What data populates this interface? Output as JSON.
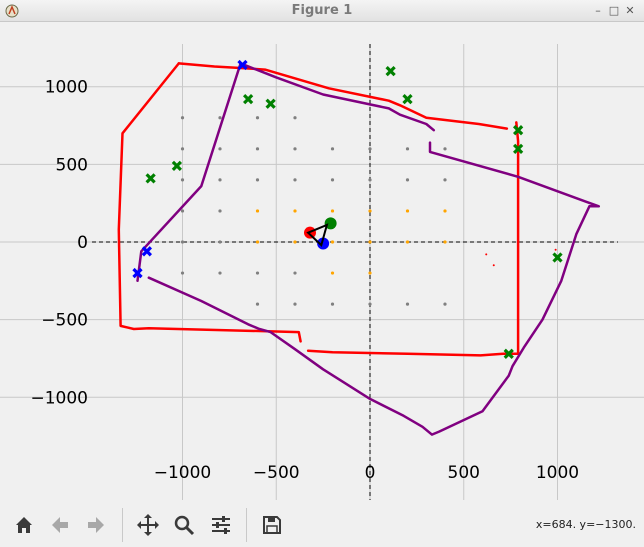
{
  "window": {
    "title": "Figure 1"
  },
  "toolbar": {
    "buttons": [
      "home-icon",
      "back-icon",
      "forward-icon",
      "pan-icon",
      "zoom-icon",
      "subplots-icon",
      "save-icon"
    ],
    "coords": "x=684. y=−1300."
  },
  "chart_data": {
    "type": "scatter",
    "xlim": [
      -1000,
      1000
    ],
    "ylim": [
      -1000,
      1000
    ],
    "xticks": [
      -1000,
      -500,
      0,
      500,
      1000
    ],
    "yticks": [
      -1000,
      -500,
      0,
      500,
      1000
    ],
    "xtick_labels": [
      "−1000",
      "−500",
      "0",
      "500",
      "1000"
    ],
    "ytick_labels": [
      "−1000",
      "−500",
      "0",
      "500",
      "1000"
    ],
    "grid": true,
    "dashed_axes": true,
    "colors": {
      "red": "#ff0000",
      "purple": "#800080",
      "green": "#008000",
      "blue": "#0000ff",
      "orange": "#ffa500",
      "gray": "#808080"
    },
    "red_path": [
      [
        [
          -1020,
          1150
        ],
        [
          -1320,
          700
        ],
        [
          -1340,
          80
        ],
        [
          -1330,
          -540
        ],
        [
          -1260,
          -560
        ],
        [
          -1180,
          -555
        ],
        [
          -380,
          -580
        ],
        [
          -370,
          -640
        ]
      ],
      [
        [
          -1020,
          1150
        ],
        [
          -830,
          1130
        ],
        [
          -680,
          1120
        ],
        [
          -560,
          1110
        ],
        [
          -220,
          990
        ],
        [
          100,
          910
        ],
        [
          160,
          880
        ],
        [
          300,
          800
        ],
        [
          580,
          760
        ],
        [
          730,
          730
        ]
      ],
      [
        [
          -330,
          -700
        ],
        [
          -200,
          -710
        ],
        [
          200,
          -720
        ],
        [
          590,
          -730
        ],
        [
          710,
          -720
        ],
        [
          740,
          -720
        ],
        [
          790,
          -720
        ],
        [
          790,
          -500
        ],
        [
          790,
          650
        ],
        [
          780,
          770
        ]
      ]
    ],
    "purple_path": [
      [
        [
          -1240,
          -250
        ],
        [
          -1220,
          -60
        ],
        [
          -900,
          360
        ],
        [
          -690,
          1150
        ],
        [
          -500,
          1060
        ],
        [
          -250,
          950
        ],
        [
          100,
          860
        ],
        [
          160,
          820
        ],
        [
          300,
          760
        ],
        [
          340,
          720
        ]
      ],
      [
        [
          -1180,
          -230
        ],
        [
          -900,
          -380
        ],
        [
          -650,
          -530
        ],
        [
          -590,
          -560
        ],
        [
          -530,
          -580
        ],
        [
          -400,
          -690
        ],
        [
          -250,
          -820
        ],
        [
          0,
          -1010
        ],
        [
          180,
          -1120
        ],
        [
          280,
          -1190
        ],
        [
          330,
          -1240
        ],
        [
          370,
          -1220
        ],
        [
          600,
          -1090
        ],
        [
          740,
          -860
        ],
        [
          760,
          -800
        ],
        [
          820,
          -680
        ],
        [
          920,
          -500
        ],
        [
          1020,
          -250
        ],
        [
          1100,
          50
        ],
        [
          1170,
          230
        ],
        [
          1220,
          230
        ],
        [
          1150,
          260
        ],
        [
          790,
          420
        ],
        [
          320,
          580
        ],
        [
          320,
          640
        ]
      ]
    ],
    "green_x": [
      [
        110,
        1100
      ],
      [
        200,
        920
      ],
      [
        -650,
        920
      ],
      [
        -530,
        890
      ],
      [
        -1170,
        410
      ],
      [
        -1030,
        490
      ],
      [
        790,
        720
      ],
      [
        790,
        600
      ],
      [
        1000,
        -100
      ],
      [
        740,
        -720
      ]
    ],
    "blue_x": [
      [
        -680,
        1140
      ],
      [
        -1190,
        -60
      ],
      [
        -1240,
        -200
      ]
    ],
    "orange_dots": [
      [
        -200,
        200
      ],
      [
        0,
        200
      ],
      [
        200,
        200
      ],
      [
        400,
        200
      ],
      [
        -600,
        200
      ],
      [
        -400,
        200
      ],
      [
        -200,
        0
      ],
      [
        0,
        0
      ],
      [
        200,
        0
      ],
      [
        400,
        0
      ],
      [
        -600,
        0
      ],
      [
        -400,
        0
      ],
      [
        -200,
        -200
      ],
      [
        0,
        -200
      ]
    ],
    "gray_dots": [
      [
        -1000,
        800
      ],
      [
        -800,
        800
      ],
      [
        -600,
        800
      ],
      [
        -400,
        800
      ],
      [
        -1000,
        600
      ],
      [
        -800,
        600
      ],
      [
        -600,
        600
      ],
      [
        -400,
        600
      ],
      [
        -200,
        600
      ],
      [
        0,
        600
      ],
      [
        200,
        600
      ],
      [
        400,
        600
      ],
      [
        -1000,
        400
      ],
      [
        -800,
        400
      ],
      [
        -600,
        400
      ],
      [
        -400,
        400
      ],
      [
        -200,
        400
      ],
      [
        0,
        400
      ],
      [
        200,
        400
      ],
      [
        400,
        400
      ],
      [
        -1000,
        200
      ],
      [
        -800,
        200
      ],
      [
        -1000,
        0
      ],
      [
        -800,
        0
      ],
      [
        -1000,
        -200
      ],
      [
        -800,
        -200
      ],
      [
        -600,
        -200
      ],
      [
        -400,
        -200
      ],
      [
        -600,
        -400
      ],
      [
        -400,
        -400
      ],
      [
        -200,
        -400
      ],
      [
        0,
        -400
      ],
      [
        200,
        -400
      ],
      [
        400,
        -400
      ]
    ],
    "scattered_red": [
      [
        620,
        -80
      ],
      [
        660,
        -150
      ],
      [
        990,
        -50
      ]
    ],
    "robot": {
      "red_circle": [
        -320,
        60
      ],
      "green_circle": [
        -210,
        120
      ],
      "blue_circle": [
        -250,
        -10
      ],
      "triangle": [
        [
          -330,
          60
        ],
        [
          -230,
          110
        ],
        [
          -260,
          -20
        ]
      ]
    }
  }
}
